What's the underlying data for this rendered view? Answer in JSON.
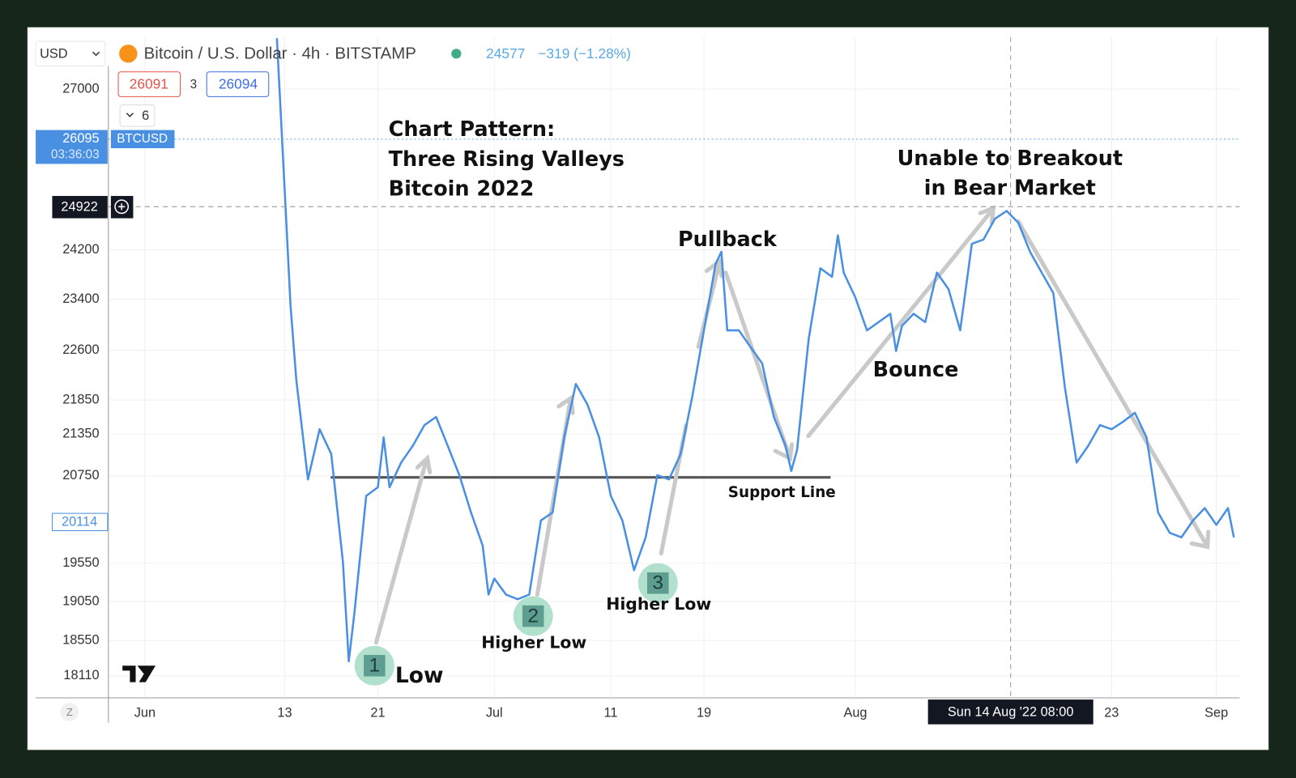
{
  "chart_data": {
    "type": "line",
    "header": {
      "currency": "USD",
      "title": "Bitcoin / U.S. Dollar · 4h · BITSTAMP",
      "price": 24577,
      "change": "−319 (−1.28%)",
      "bid": 26091,
      "spread": 3,
      "ask": 26094,
      "interval_count": 6
    },
    "annotations": {
      "pattern_1": "Chart Pattern:",
      "pattern_2": "Three Rising Valleys",
      "pattern_3": "Bitcoin 2022",
      "breakout_1": "Unable to Breakout",
      "breakout_2": "in Bear Market",
      "pullback": "Pullback",
      "bounce": "Bounce",
      "support": "Support Line",
      "low": "Low",
      "higher_low_1": "Higher Low",
      "higher_low_2": "Higher Low",
      "valley_1": "1",
      "valley_2": "2",
      "valley_3": "3"
    },
    "last_price": 26095,
    "countdown": "03:36:03",
    "symbol": "BTCUSD",
    "crosshair": {
      "price": 24922,
      "x": "2022-08-14T08:00",
      "label": "Sun 14 Aug '22 08:00"
    },
    "marker_price": 20114,
    "timezone_button": "Z",
    "log_scale": true,
    "grid": true,
    "series": [
      {
        "name": "BTCUSD",
        "color": "#4a90e2",
        "x": [
          "2022-06-12T08:00",
          "2022-06-13T00:00",
          "2022-06-13T12:00",
          "2022-06-14T00:00",
          "2022-06-15T00:00",
          "2022-06-16T00:00",
          "2022-06-17T00:00",
          "2022-06-18T00:00",
          "2022-06-18T12:00",
          "2022-06-19T00:00",
          "2022-06-20T00:00",
          "2022-06-21T00:00",
          "2022-06-21T12:00",
          "2022-06-22T00:00",
          "2022-06-23T00:00",
          "2022-06-24T00:00",
          "2022-06-25T00:00",
          "2022-06-26T00:00",
          "2022-06-27T00:00",
          "2022-06-28T00:00",
          "2022-06-29T00:00",
          "2022-06-30T00:00",
          "2022-06-30T12:00",
          "2022-07-01T00:00",
          "2022-07-02T00:00",
          "2022-07-03T00:00",
          "2022-07-04T00:00",
          "2022-07-05T00:00",
          "2022-07-06T00:00",
          "2022-07-07T00:00",
          "2022-07-08T00:00",
          "2022-07-09T00:00",
          "2022-07-10T00:00",
          "2022-07-11T00:00",
          "2022-07-12T00:00",
          "2022-07-13T00:00",
          "2022-07-14T00:00",
          "2022-07-15T00:00",
          "2022-07-16T00:00",
          "2022-07-17T00:00",
          "2022-07-18T00:00",
          "2022-07-19T00:00",
          "2022-07-20T00:00",
          "2022-07-20T12:00",
          "2022-07-21T00:00",
          "2022-07-22T00:00",
          "2022-07-23T00:00",
          "2022-07-24T00:00",
          "2022-07-25T00:00",
          "2022-07-26T00:00",
          "2022-07-26T12:00",
          "2022-07-27T00:00",
          "2022-07-28T00:00",
          "2022-07-29T00:00",
          "2022-07-30T00:00",
          "2022-07-30T12:00",
          "2022-07-31T00:00",
          "2022-08-01T00:00",
          "2022-08-02T00:00",
          "2022-08-03T00:00",
          "2022-08-04T00:00",
          "2022-08-04T12:00",
          "2022-08-05T00:00",
          "2022-08-06T00:00",
          "2022-08-07T00:00",
          "2022-08-08T00:00",
          "2022-08-09T00:00",
          "2022-08-10T00:00",
          "2022-08-11T00:00",
          "2022-08-12T00:00",
          "2022-08-13T00:00",
          "2022-08-14T00:00",
          "2022-08-15T00:00",
          "2022-08-16T00:00",
          "2022-08-17T00:00",
          "2022-08-18T00:00",
          "2022-08-19T00:00",
          "2022-08-20T00:00",
          "2022-08-21T00:00",
          "2022-08-22T00:00",
          "2022-08-23T00:00",
          "2022-08-24T00:00",
          "2022-08-25T00:00",
          "2022-08-26T00:00",
          "2022-08-27T00:00",
          "2022-08-28T00:00",
          "2022-08-29T00:00",
          "2022-08-30T00:00",
          "2022-08-31T00:00",
          "2022-09-01T00:00",
          "2022-09-02T00:00",
          "2022-09-02T12:00"
        ],
        "values": [
          27950,
          25210,
          23300,
          22150,
          20700,
          21420,
          21060,
          19570,
          18290,
          18920,
          20470,
          20590,
          21300,
          20590,
          20940,
          21180,
          21480,
          21600,
          21180,
          20760,
          20240,
          19790,
          19140,
          19350,
          19140,
          19080,
          19140,
          20130,
          20240,
          21300,
          22090,
          21780,
          21300,
          20470,
          20130,
          19460,
          19900,
          20760,
          20700,
          21060,
          21900,
          22910,
          23970,
          24170,
          22910,
          22910,
          22650,
          22400,
          21600,
          21180,
          20820,
          21120,
          22780,
          23900,
          23760,
          24440,
          23830,
          23430,
          22910,
          23040,
          23170,
          22590,
          22980,
          23170,
          23040,
          23830,
          23560,
          22910,
          24300,
          24370,
          24720,
          24850,
          24650,
          24170,
          23830,
          23500,
          22030,
          20940,
          21180,
          21480,
          21420,
          21530,
          21660,
          21300,
          20240,
          19960,
          19900,
          20130,
          20300,
          20070,
          20300,
          19900
        ]
      }
    ],
    "xlim": [
      "2022-05-28T19:00",
      "2022-09-03T00:00"
    ],
    "xticks": [
      {
        "value": "2022-06-01T00:00",
        "label": "Jun"
      },
      {
        "value": "2022-06-13T00:00",
        "label": "13"
      },
      {
        "value": "2022-06-21T00:00",
        "label": "21"
      },
      {
        "value": "2022-07-01T00:00",
        "label": "Jul"
      },
      {
        "value": "2022-07-11T00:00",
        "label": "11"
      },
      {
        "value": "2022-07-19T00:00",
        "label": "19"
      },
      {
        "value": "2022-08-01T00:00",
        "label": "Aug"
      },
      {
        "value": "2022-08-23T00:00",
        "label": "23"
      },
      {
        "value": "2022-09-01T00:00",
        "label": "Sep"
      }
    ],
    "ylim": [
      17840,
      27970
    ],
    "yticks": [
      27000,
      24200,
      23400,
      22600,
      21850,
      21350,
      20750,
      19550,
      19050,
      18550,
      18110
    ]
  }
}
